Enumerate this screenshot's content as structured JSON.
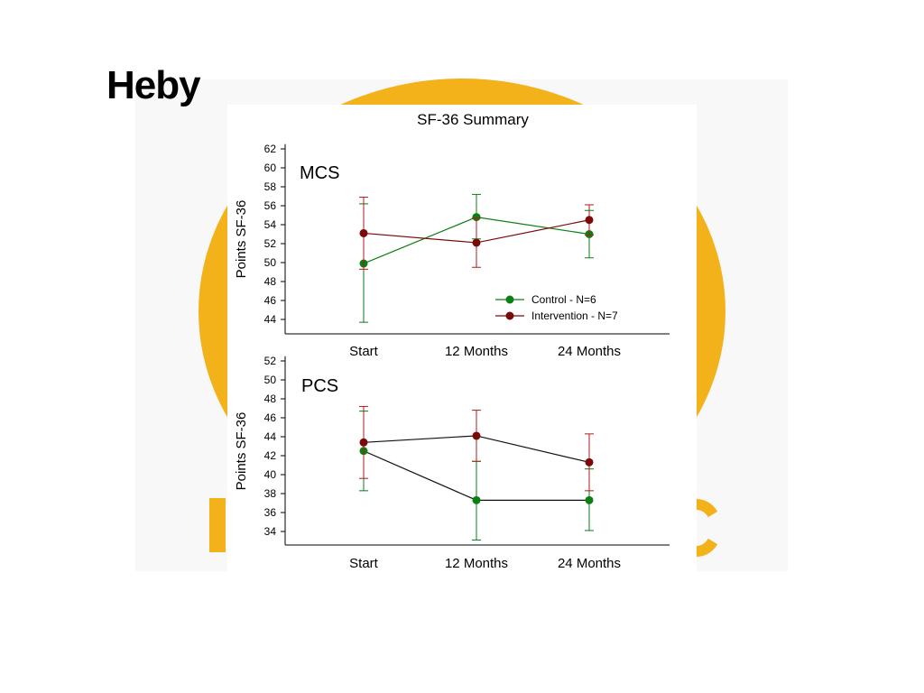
{
  "slide": {
    "title": "Heby"
  },
  "colors": {
    "control": "#0a7f14",
    "intervention": "#7a0a0a",
    "intervention_bar": "#b31b1b",
    "background_art": "#f3b21a"
  },
  "chart_data": [
    {
      "type": "line",
      "title": "SF-36 Summary",
      "panel_label": "MCS",
      "xlabel": "",
      "ylabel": "Points SF-36",
      "categories": [
        "Start",
        "12 Months",
        "24 Months"
      ],
      "yticks": [
        44,
        46,
        48,
        50,
        52,
        54,
        56,
        58,
        60,
        62
      ],
      "ylim": [
        42.5,
        62.5
      ],
      "grid": false,
      "legend_position": "bottom-right",
      "series": [
        {
          "name": "Control - N=6",
          "values": [
            49.9,
            54.8,
            53.0
          ],
          "err_low": [
            43.7,
            52.5,
            50.5
          ],
          "err_high": [
            56.2,
            57.2,
            55.5
          ]
        },
        {
          "name": "Intervention - N=7",
          "values": [
            53.1,
            52.1,
            54.5
          ],
          "err_low": [
            49.3,
            49.5,
            52.9
          ],
          "err_high": [
            56.9,
            54.7,
            56.1
          ]
        }
      ]
    },
    {
      "type": "line",
      "title": "",
      "panel_label": "PCS",
      "xlabel": "",
      "ylabel": "Points SF-36",
      "categories": [
        "Start",
        "12 Months",
        "24 Months"
      ],
      "yticks": [
        34,
        36,
        38,
        40,
        42,
        44,
        46,
        48,
        50,
        52
      ],
      "ylim": [
        32.5,
        52.5
      ],
      "grid": false,
      "series": [
        {
          "name": "Control - N=6",
          "values": [
            42.5,
            37.3,
            37.3
          ],
          "err_low": [
            38.3,
            33.1,
            34.1
          ],
          "err_high": [
            46.7,
            41.4,
            40.6
          ]
        },
        {
          "name": "Intervention - N=7",
          "values": [
            43.4,
            44.1,
            41.3
          ],
          "err_low": [
            39.6,
            41.4,
            38.3
          ],
          "err_high": [
            47.2,
            46.8,
            44.3
          ]
        }
      ]
    }
  ]
}
